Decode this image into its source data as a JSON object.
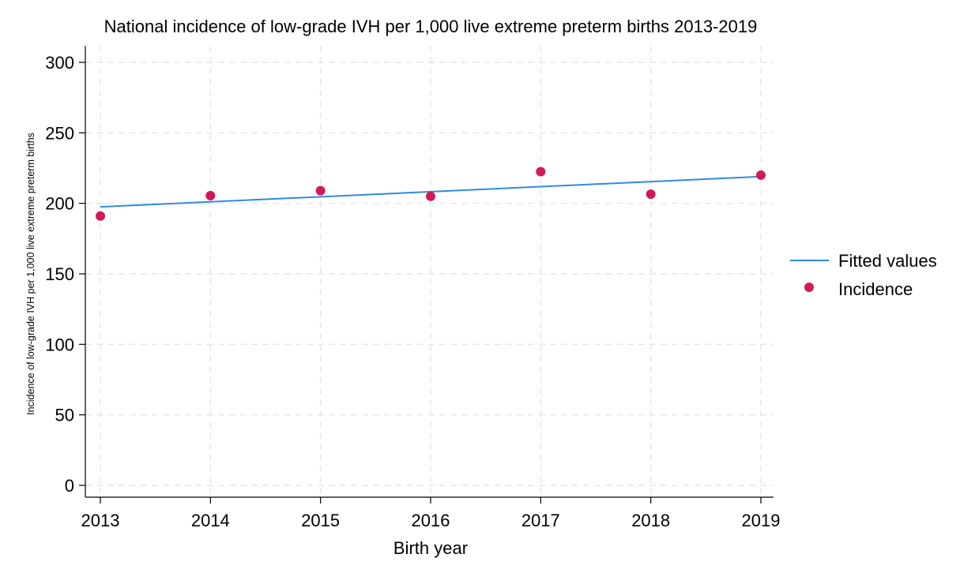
{
  "chart_data": {
    "type": "scatter",
    "title": "National incidence of low-grade IVH per 1,000 live extreme preterm births 2013-2019",
    "xlabel": "Birth year",
    "ylabel": "Incidence of low-grade IVH per 1,000 live extreme preterm births",
    "x_ticks": [
      "2013",
      "2014",
      "2015",
      "2016",
      "2017",
      "2018",
      "2019"
    ],
    "y_ticks": [
      "0",
      "50",
      "100",
      "150",
      "200",
      "250",
      "300"
    ],
    "xlim": [
      2013,
      2019
    ],
    "ylim": [
      0,
      300
    ],
    "grid": true,
    "legend_position": "right",
    "series": [
      {
        "name": "Fitted values",
        "kind": "line",
        "color": "#2f8ae0",
        "x": [
          2013,
          2019
        ],
        "y": [
          197.5,
          219
        ]
      },
      {
        "name": "Incidence",
        "kind": "scatter",
        "color": "#d11a5a",
        "x": [
          2013,
          2014,
          2015,
          2016,
          2017,
          2018,
          2019
        ],
        "y": [
          191,
          205.5,
          209,
          205,
          222.5,
          206.5,
          220
        ]
      }
    ]
  }
}
